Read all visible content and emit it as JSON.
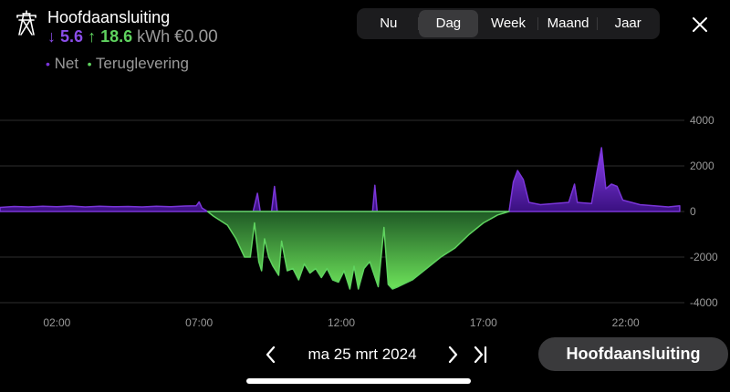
{
  "header": {
    "title": "Hoofdaansluiting",
    "import_arrow": "↓",
    "import_value": "5.6",
    "export_arrow": "↑",
    "export_value": "18.6",
    "unit": "kWh",
    "cost": "€0.00",
    "icon": "power-pylon-icon"
  },
  "legend": {
    "net_dot": "•",
    "net_label": "Net",
    "return_dot": "•",
    "return_label": "Teruglevering"
  },
  "tabs": [
    {
      "label": "Nu",
      "active": false
    },
    {
      "label": "Dag",
      "active": true
    },
    {
      "label": "Week",
      "active": false
    },
    {
      "label": "Maand",
      "active": false
    },
    {
      "label": "Jaar",
      "active": false
    }
  ],
  "close_icon": "close-icon",
  "footer": {
    "date": "ma 25 mrt 2024",
    "connection_button": "Hoofdaansluiting",
    "prev_icon": "chevron-left-icon",
    "next_icon": "chevron-right-icon",
    "last_icon": "skip-to-end-icon"
  },
  "colors": {
    "net": "#7a35d9",
    "return": "#5fd35f",
    "background": "#000000"
  },
  "chart_data": {
    "type": "area",
    "x_unit": "hours",
    "xlim": [
      0,
      24
    ],
    "ylim": [
      -4000,
      4000
    ],
    "x_tick_values": [
      2,
      7,
      12,
      17,
      22
    ],
    "x_tick_labels": [
      "02:00",
      "07:00",
      "12:00",
      "17:00",
      "22:00"
    ],
    "y_ticks": [
      4000,
      2000,
      0,
      -2000,
      -4000
    ],
    "y_tick_labels": [
      "4000",
      "2000",
      "0",
      "-2000",
      "-4000"
    ],
    "grid": true,
    "series": [
      {
        "name": "Net",
        "points": [
          [
            0,
            180
          ],
          [
            0.5,
            220
          ],
          [
            1,
            200
          ],
          [
            1.5,
            230
          ],
          [
            2,
            210
          ],
          [
            2.5,
            240
          ],
          [
            3,
            200
          ],
          [
            3.5,
            230
          ],
          [
            4,
            210
          ],
          [
            4.5,
            220
          ],
          [
            5,
            200
          ],
          [
            5.5,
            230
          ],
          [
            6,
            210
          ],
          [
            6.5,
            240
          ],
          [
            6.9,
            250
          ],
          [
            7.0,
            420
          ],
          [
            7.1,
            150
          ],
          [
            7.3,
            0
          ],
          [
            8.9,
            0
          ],
          [
            9.05,
            800
          ],
          [
            9.15,
            0
          ],
          [
            9.55,
            0
          ],
          [
            9.65,
            1100
          ],
          [
            9.75,
            0
          ],
          [
            13.1,
            0
          ],
          [
            13.18,
            1150
          ],
          [
            13.26,
            0
          ],
          [
            17.9,
            0
          ],
          [
            18.05,
            1300
          ],
          [
            18.2,
            1800
          ],
          [
            18.4,
            1400
          ],
          [
            18.6,
            400
          ],
          [
            19,
            300
          ],
          [
            19.5,
            350
          ],
          [
            20,
            400
          ],
          [
            20.2,
            1200
          ],
          [
            20.3,
            400
          ],
          [
            20.8,
            350
          ],
          [
            21.0,
            1800
          ],
          [
            21.15,
            2800
          ],
          [
            21.3,
            1000
          ],
          [
            21.5,
            1200
          ],
          [
            21.7,
            1100
          ],
          [
            21.9,
            500
          ],
          [
            22.5,
            300
          ],
          [
            23,
            250
          ],
          [
            23.5,
            200
          ],
          [
            23.9,
            250
          ]
        ]
      },
      {
        "name": "Teruglevering",
        "points": [
          [
            7.3,
            0
          ],
          [
            7.5,
            -200
          ],
          [
            8,
            -600
          ],
          [
            8.3,
            -1200
          ],
          [
            8.6,
            -2000
          ],
          [
            8.8,
            -2000
          ],
          [
            8.95,
            -500
          ],
          [
            9.1,
            -2200
          ],
          [
            9.2,
            -2600
          ],
          [
            9.3,
            -1200
          ],
          [
            9.45,
            -2000
          ],
          [
            9.6,
            -2400
          ],
          [
            9.8,
            -2800
          ],
          [
            9.9,
            -1300
          ],
          [
            10.1,
            -2600
          ],
          [
            10.3,
            -2500
          ],
          [
            10.5,
            -3000
          ],
          [
            10.7,
            -2300
          ],
          [
            10.9,
            -2700
          ],
          [
            11.1,
            -2500
          ],
          [
            11.3,
            -2900
          ],
          [
            11.5,
            -2500
          ],
          [
            11.7,
            -3000
          ],
          [
            11.9,
            -3100
          ],
          [
            12.1,
            -2600
          ],
          [
            12.3,
            -3400
          ],
          [
            12.45,
            -2400
          ],
          [
            12.6,
            -3400
          ],
          [
            12.8,
            -2500
          ],
          [
            13.0,
            -2200
          ],
          [
            13.3,
            -3300
          ],
          [
            13.5,
            -700
          ],
          [
            13.65,
            -3200
          ],
          [
            13.8,
            -3400
          ],
          [
            14.0,
            -3300
          ],
          [
            14.5,
            -3000
          ],
          [
            15.0,
            -2500
          ],
          [
            15.5,
            -2000
          ],
          [
            16.0,
            -1600
          ],
          [
            16.5,
            -1000
          ],
          [
            17.0,
            -500
          ],
          [
            17.5,
            -150
          ],
          [
            17.9,
            0
          ]
        ]
      }
    ]
  }
}
